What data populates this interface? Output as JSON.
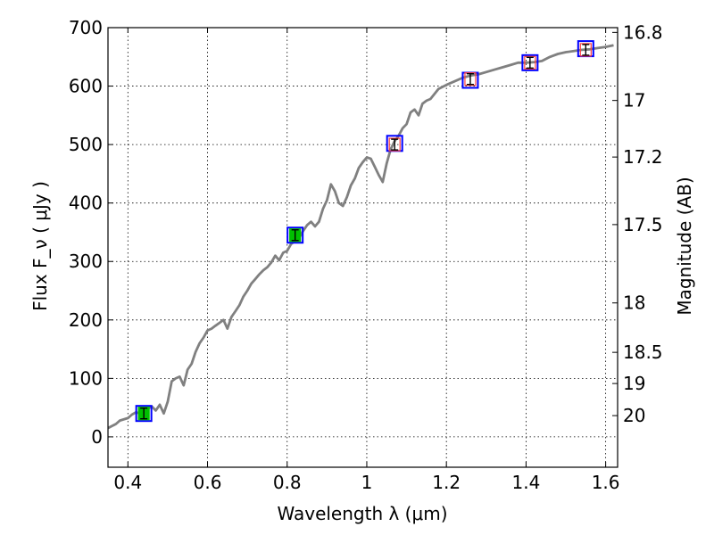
{
  "chart_data": {
    "type": "line",
    "xlabel": "Wavelength  λ (μm)",
    "ylabel": "Flux  F_ν  ( μJy )",
    "y2label": "Magnitude (AB)",
    "xlim": [
      0.35,
      1.63
    ],
    "ylim": [
      -52,
      700
    ],
    "x_ticks": [
      0.4,
      0.6,
      0.8,
      1.0,
      1.2,
      1.4,
      1.6
    ],
    "x_tick_labels": [
      "0.4",
      "0.6",
      "0.8",
      "1",
      "1.2",
      "1.4",
      "1.6"
    ],
    "y_ticks": [
      0,
      100,
      200,
      300,
      400,
      500,
      600,
      700
    ],
    "y_tick_labels": [
      "0",
      "100",
      "200",
      "300",
      "400",
      "500",
      "600",
      "700"
    ],
    "y2_ticks": [
      16.8,
      17,
      17.2,
      17.5,
      18,
      18.5,
      19,
      20
    ],
    "y2_tick_labels": [
      "16.8",
      "17",
      "17.2",
      "17.5",
      "18",
      "18.5",
      "19",
      "20"
    ],
    "grid": true,
    "series": [
      {
        "kind": "line",
        "color": "#808080",
        "x": [
          0.35,
          0.37,
          0.38,
          0.4,
          0.41,
          0.42,
          0.43,
          0.44,
          0.45,
          0.46,
          0.47,
          0.48,
          0.49,
          0.5,
          0.51,
          0.52,
          0.53,
          0.54,
          0.55,
          0.56,
          0.57,
          0.58,
          0.59,
          0.6,
          0.61,
          0.62,
          0.63,
          0.64,
          0.65,
          0.66,
          0.67,
          0.68,
          0.69,
          0.7,
          0.71,
          0.72,
          0.73,
          0.74,
          0.75,
          0.76,
          0.77,
          0.78,
          0.79,
          0.8,
          0.81,
          0.82,
          0.83,
          0.84,
          0.85,
          0.86,
          0.87,
          0.88,
          0.89,
          0.9,
          0.91,
          0.92,
          0.93,
          0.94,
          0.95,
          0.96,
          0.97,
          0.98,
          0.99,
          1.0,
          1.01,
          1.02,
          1.03,
          1.04,
          1.05,
          1.06,
          1.07,
          1.08,
          1.09,
          1.1,
          1.11,
          1.12,
          1.13,
          1.14,
          1.15,
          1.16,
          1.18,
          1.2,
          1.22,
          1.24,
          1.26,
          1.28,
          1.3,
          1.32,
          1.34,
          1.36,
          1.38,
          1.4,
          1.42,
          1.44,
          1.46,
          1.48,
          1.5,
          1.52,
          1.54,
          1.56,
          1.58,
          1.6,
          1.62
        ],
        "y": [
          15,
          22,
          28,
          32,
          38,
          42,
          40,
          45,
          48,
          52,
          45,
          55,
          40,
          60,
          95,
          100,
          103,
          88,
          115,
          125,
          145,
          160,
          170,
          182,
          185,
          190,
          195,
          200,
          185,
          205,
          215,
          225,
          240,
          250,
          262,
          270,
          278,
          285,
          290,
          298,
          310,
          302,
          315,
          318,
          330,
          335,
          340,
          352,
          362,
          368,
          360,
          368,
          390,
          405,
          432,
          420,
          400,
          395,
          410,
          430,
          442,
          460,
          470,
          478,
          476,
          462,
          448,
          436,
          468,
          492,
          506,
          515,
          528,
          535,
          555,
          560,
          550,
          570,
          575,
          578,
          595,
          602,
          608,
          614,
          618,
          620,
          624,
          628,
          632,
          636,
          640,
          640,
          641,
          643,
          650,
          655,
          658,
          660,
          662,
          663,
          665,
          667,
          670
        ]
      },
      {
        "kind": "squares",
        "color": "#0000ff",
        "x": [
          0.44,
          0.82,
          1.07,
          1.26,
          1.41,
          1.55
        ],
        "y": [
          40,
          345,
          502,
          610,
          640,
          664
        ]
      },
      {
        "kind": "points",
        "color": "#00c000",
        "x": [
          0.44,
          0.82
        ],
        "y": [
          40,
          345
        ]
      },
      {
        "kind": "points",
        "color": "#ff4040",
        "x": [
          1.07,
          1.26,
          1.41,
          1.55
        ],
        "y": [
          500,
          612,
          640,
          662
        ]
      }
    ]
  }
}
